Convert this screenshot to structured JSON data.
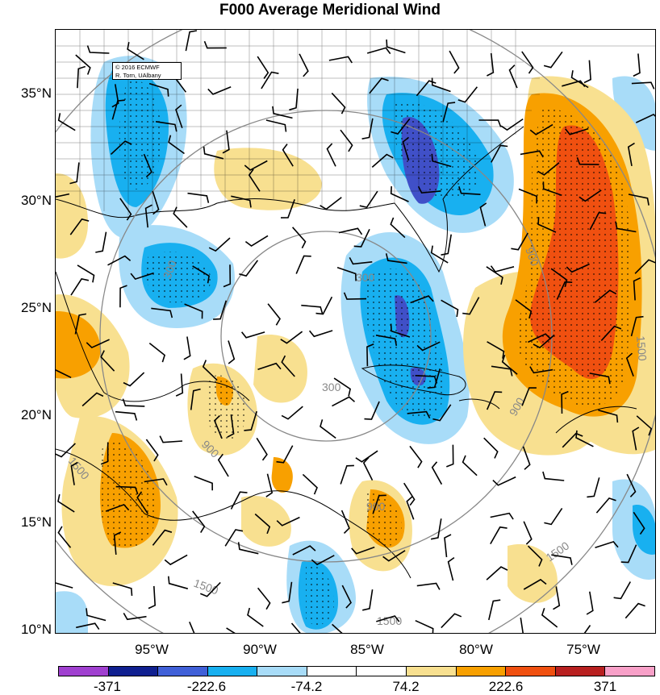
{
  "title": "F000 Average Meridional Wind",
  "credit": {
    "line1": "© 2016 ECMWF",
    "line2": "R. Torn, UAlbany"
  },
  "lat_labels": [
    "35°N",
    "30°N",
    "25°N",
    "20°N",
    "15°N",
    "10°N"
  ],
  "lon_labels": [
    "95°W",
    "90°W",
    "85°W",
    "80°W",
    "75°W"
  ],
  "range_ring_labels": [
    "300",
    "300",
    "300",
    "900",
    "900",
    "900",
    "900",
    "1500",
    "1500",
    "1500",
    "1500",
    "1500"
  ],
  "colorbar": {
    "labels": [
      "-371",
      "-222.6",
      "-74.2",
      "74.2",
      "222.6",
      "371"
    ],
    "colors": [
      "#a040d0",
      "#102090",
      "#4060d8",
      "#18b0f0",
      "#a8dcf8",
      "#ffffff",
      "#ffffff",
      "#f8e090",
      "#f8a000",
      "#f05010",
      "#b82020",
      "#f8a0c8"
    ]
  },
  "colors": {
    "strong_neg": "#4050c8",
    "neg": "#18b0f0",
    "weak_neg": "#a8dcf8",
    "weak_pos": "#f8e090",
    "pos": "#f8a000",
    "strong_pos": "#f05010",
    "land_tan": "#f0e6b8"
  }
}
